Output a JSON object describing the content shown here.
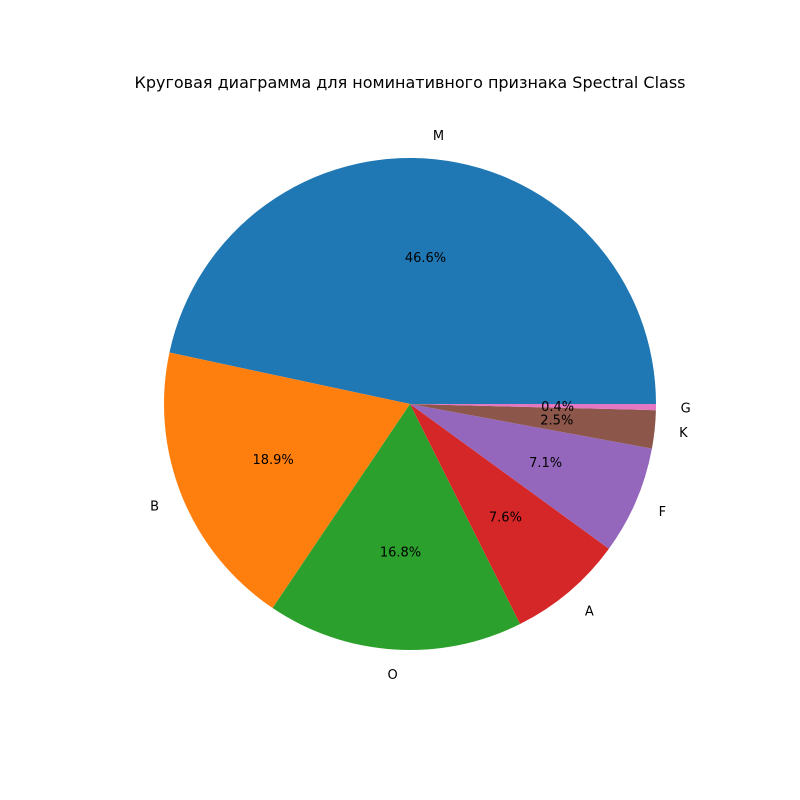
{
  "chart_data": {
    "type": "pie",
    "title": "Круговая диаграмма для номинативного признака Spectral Class",
    "start_angle_deg": 0,
    "direction": "counterclockwise",
    "slices": [
      {
        "label": "M",
        "value": 46.6,
        "pct_label": "46.6%",
        "color": "#1f77b4"
      },
      {
        "label": "B",
        "value": 18.9,
        "pct_label": "18.9%",
        "color": "#ff7f0e"
      },
      {
        "label": "O",
        "value": 16.8,
        "pct_label": "16.8%",
        "color": "#2ca02c"
      },
      {
        "label": "A",
        "value": 7.6,
        "pct_label": "7.6%",
        "color": "#d62728"
      },
      {
        "label": "F",
        "value": 7.1,
        "pct_label": "7.1%",
        "color": "#9467bd"
      },
      {
        "label": "K",
        "value": 2.5,
        "pct_label": "2.5%",
        "color": "#8c564b"
      },
      {
        "label": "G",
        "value": 0.4,
        "pct_label": "0.4%",
        "color": "#e377c2"
      }
    ]
  }
}
